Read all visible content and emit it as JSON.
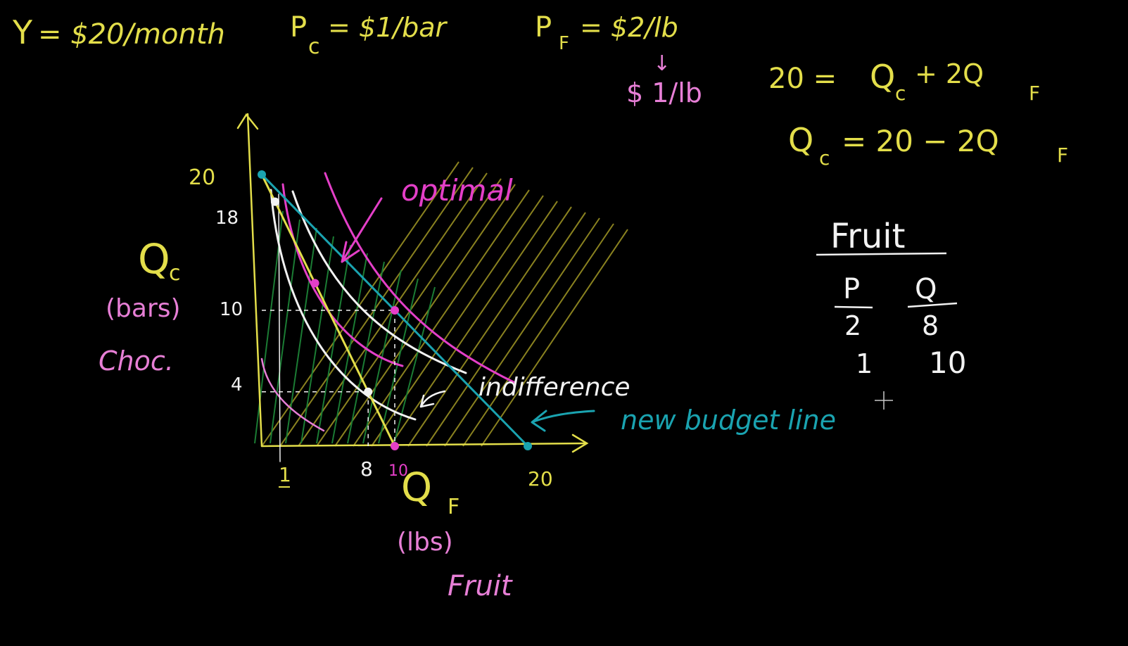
{
  "colors": {
    "yellow": "#e3de4a",
    "pink": "#e77fd6",
    "magenta": "#e43fc8",
    "white": "#f2f2f2",
    "teal": "#1aa3b0",
    "green": "#1e8a3a",
    "olive": "#9a9124",
    "background": "#000000"
  },
  "equations": {
    "income_lhs": "Y",
    "income_rhs": "= $20/month",
    "pc_lhs": "P",
    "pc_sub": "c",
    "pc_rhs": "= $1/bar",
    "pf_lhs": "P",
    "pf_sub": "F",
    "pf_rhs": "= $2/lb",
    "new_price_arrow": "↓",
    "new_price": "$ 1/lb",
    "budget_lhs": "20 =",
    "budget_q1": "Q",
    "budget_q1_sub": "c",
    "budget_plus": "+ 2Q",
    "budget_q2_sub": "F",
    "solved_q": "Q",
    "solved_q_sub": "c",
    "solved_rhs": "= 20 − 2Q",
    "solved_rhs_sub": "F"
  },
  "graph": {
    "y_axis_label": "Q",
    "y_axis_sub": "c",
    "y_unit": "(bars)",
    "y_name": "Choc.",
    "x_axis_label": "Q",
    "x_axis_sub": "F",
    "x_unit": "(lbs)",
    "x_name": "Fruit",
    "y_ticks": [
      "20",
      "18",
      "10",
      "4"
    ],
    "x_ticks": [
      "1",
      "8",
      "10",
      "20"
    ],
    "optimal_label": "optimal",
    "indifference_label": "indifference",
    "budget_label": "new budget line"
  },
  "chart_data": {
    "type": "line",
    "xlabel": "Q F (lbs) Fruit",
    "ylabel": "Q c (bars) Choc.",
    "xlim": [
      0,
      20
    ],
    "ylim": [
      0,
      20
    ],
    "series": [
      {
        "name": "",
        "x": [
          0,
          10
        ],
        "y": [
          20,
          0
        ]
      },
      {
        "name": "new budget line",
        "x": [
          0,
          20
        ],
        "y": [
          20,
          0
        ]
      }
    ],
    "points": [
      {
        "x": 1,
        "y": 18
      },
      {
        "x": 4,
        "y": 12
      },
      {
        "x": 8,
        "y": 4
      },
      {
        "x": 10,
        "y": 10
      },
      {
        "x": 10,
        "y": 0
      },
      {
        "x": 0,
        "y": 20
      },
      {
        "x": 20,
        "y": 0
      }
    ]
  },
  "table": {
    "title": "Fruit",
    "headers": [
      "P",
      "Q"
    ],
    "rows": [
      [
        "2",
        "8"
      ],
      [
        "1",
        "10"
      ]
    ]
  }
}
